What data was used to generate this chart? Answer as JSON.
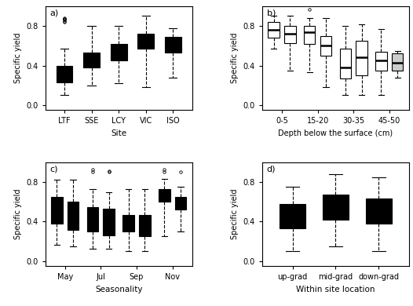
{
  "panel_a": {
    "label": "a)",
    "xlabel": "Site",
    "ylabel": "Specific yield",
    "categories": [
      "LTF",
      "SSE",
      "LCY",
      "VIC",
      "ISO"
    ],
    "boxes": [
      {
        "q1": 0.23,
        "median": 0.32,
        "q3": 0.4,
        "whislo": 0.1,
        "whishi": 0.57,
        "fliers": [
          0.84,
          0.85,
          0.86,
          0.87,
          0.87,
          0.88
        ]
      },
      {
        "q1": 0.38,
        "median": 0.44,
        "q3": 0.53,
        "whislo": 0.2,
        "whishi": 0.8,
        "fliers": []
      },
      {
        "q1": 0.45,
        "median": 0.53,
        "q3": 0.62,
        "whislo": 0.22,
        "whishi": 0.8,
        "fliers": []
      },
      {
        "q1": 0.57,
        "median": 0.63,
        "q3": 0.72,
        "whislo": 0.18,
        "whishi": 0.9,
        "fliers": []
      },
      {
        "q1": 0.53,
        "median": 0.61,
        "q3": 0.69,
        "whislo": 0.28,
        "whishi": 0.78,
        "fliers": []
      }
    ],
    "ylim": [
      -0.05,
      1.0
    ],
    "yticks": [
      0.0,
      0.4,
      0.8
    ]
  },
  "panel_b": {
    "label": "b)",
    "xlabel": "Depth below the surface (cm)",
    "ylabel": "Specific yield",
    "boxes": [
      {
        "q1": 0.68,
        "median": 0.76,
        "q3": 0.84,
        "whislo": 0.57,
        "whishi": 0.9,
        "fliers": []
      },
      {
        "q1": 0.63,
        "median": 0.72,
        "q3": 0.8,
        "whislo": 0.35,
        "whishi": 0.9,
        "fliers": []
      },
      {
        "q1": 0.62,
        "median": 0.74,
        "q3": 0.8,
        "whislo": 0.33,
        "whishi": 0.88,
        "fliers": [
          0.97
        ]
      },
      {
        "q1": 0.5,
        "median": 0.6,
        "q3": 0.7,
        "whislo": 0.18,
        "whishi": 0.88,
        "fliers": []
      },
      {
        "q1": 0.27,
        "median": 0.38,
        "q3": 0.57,
        "whislo": 0.1,
        "whishi": 0.8,
        "fliers": []
      },
      {
        "q1": 0.3,
        "median": 0.48,
        "q3": 0.65,
        "whislo": 0.1,
        "whishi": 0.82,
        "fliers": []
      },
      {
        "q1": 0.35,
        "median": 0.45,
        "q3": 0.54,
        "whislo": 0.1,
        "whishi": 0.77,
        "fliers": []
      },
      {
        "q1": 0.35,
        "median": 0.43,
        "q3": 0.52,
        "whislo": 0.28,
        "whishi": 0.55,
        "fliers": []
      }
    ],
    "xlabels": [
      "0-5",
      "15-20",
      "30-35",
      "45-50"
    ],
    "positions": [
      1,
      2,
      3.2,
      4.2,
      5.4,
      6.4,
      7.6,
      8.6
    ],
    "xtick_positions": [
      1.5,
      3.7,
      5.9,
      8.1
    ],
    "xlim": [
      0.3,
      9.3
    ],
    "ylim": [
      -0.05,
      1.0
    ],
    "yticks": [
      0.0,
      0.4,
      0.8
    ],
    "last_box_grey": true
  },
  "panel_c": {
    "label": "c)",
    "xlabel": "Seasonality",
    "ylabel": "Specific yield",
    "boxes": [
      {
        "q1": 0.38,
        "median": 0.55,
        "q3": 0.65,
        "whislo": 0.17,
        "whishi": 0.82,
        "fliers": []
      },
      {
        "q1": 0.32,
        "median": 0.5,
        "q3": 0.6,
        "whislo": 0.15,
        "whishi": 0.82,
        "fliers": []
      },
      {
        "q1": 0.3,
        "median": 0.42,
        "q3": 0.55,
        "whislo": 0.13,
        "whishi": 0.73,
        "fliers": [
          0.9,
          0.93
        ]
      },
      {
        "q1": 0.26,
        "median": 0.4,
        "q3": 0.53,
        "whislo": 0.13,
        "whishi": 0.7,
        "fliers": [
          0.9,
          0.91
        ]
      },
      {
        "q1": 0.3,
        "median": 0.38,
        "q3": 0.47,
        "whislo": 0.1,
        "whishi": 0.73,
        "fliers": []
      },
      {
        "q1": 0.25,
        "median": 0.35,
        "q3": 0.47,
        "whislo": 0.1,
        "whishi": 0.73,
        "fliers": []
      },
      {
        "q1": 0.6,
        "median": 0.67,
        "q3": 0.73,
        "whislo": 0.25,
        "whishi": 0.83,
        "fliers": [
          0.9,
          0.93
        ]
      },
      {
        "q1": 0.52,
        "median": 0.58,
        "q3": 0.65,
        "whislo": 0.3,
        "whishi": 0.75,
        "fliers": [
          0.9
        ]
      }
    ],
    "xlabels": [
      "May",
      "Jul",
      "Sep",
      "Nov"
    ],
    "positions": [
      1,
      2,
      3.2,
      4.2,
      5.4,
      6.4,
      7.6,
      8.6
    ],
    "xtick_positions": [
      1.5,
      3.7,
      5.9,
      8.1
    ],
    "xlim": [
      0.3,
      9.3
    ],
    "ylim": [
      -0.05,
      1.0
    ],
    "yticks": [
      0.0,
      0.4,
      0.8
    ]
  },
  "panel_d": {
    "label": "d)",
    "xlabel": "Within site location",
    "ylabel": "Specific yield",
    "categories": [
      "up-grad",
      "mid-grad",
      "down-grad"
    ],
    "boxes": [
      {
        "q1": 0.33,
        "median": 0.43,
        "q3": 0.58,
        "whislo": 0.1,
        "whishi": 0.75,
        "fliers": []
      },
      {
        "q1": 0.42,
        "median": 0.55,
        "q3": 0.67,
        "whislo": 0.15,
        "whishi": 0.88,
        "fliers": []
      },
      {
        "q1": 0.38,
        "median": 0.52,
        "q3": 0.63,
        "whislo": 0.1,
        "whishi": 0.85,
        "fliers": []
      }
    ],
    "ylim": [
      -0.05,
      1.0
    ],
    "yticks": [
      0.0,
      0.4,
      0.8
    ]
  }
}
